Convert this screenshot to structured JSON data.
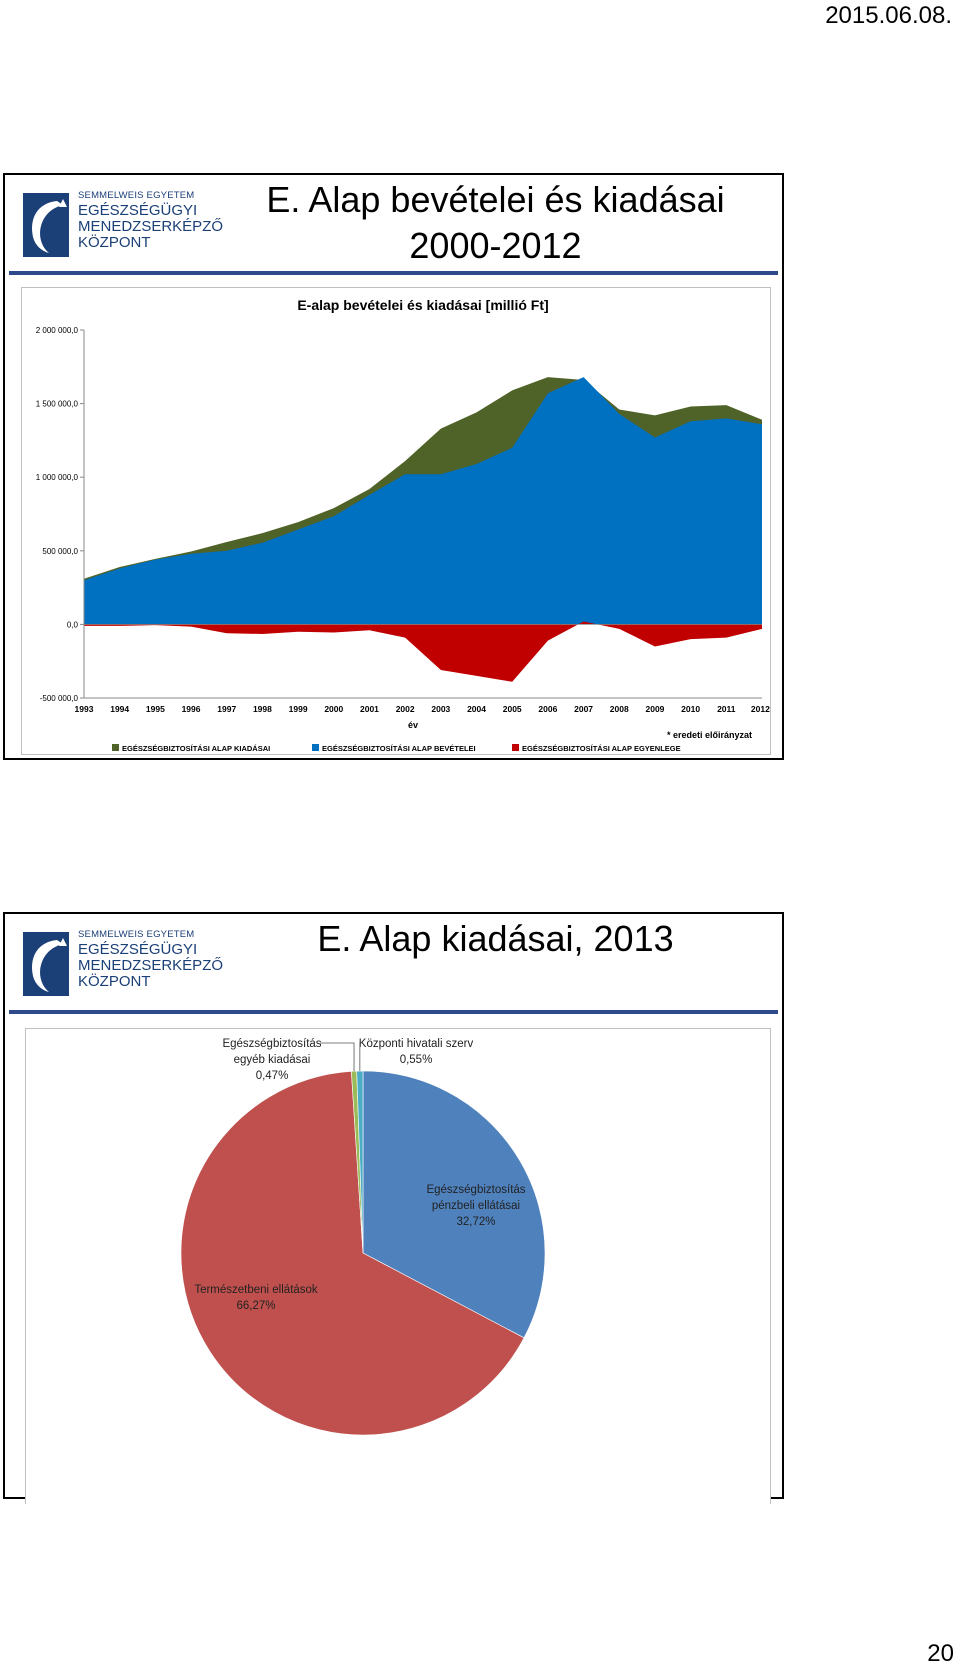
{
  "page": {
    "date": "2015.06.08.",
    "page_number": "20"
  },
  "logo": {
    "line1": "SEMMELWEIS EGYETEM",
    "line2": "EGÉSZSÉGÜGYI",
    "line3": "MENEDZSERKÉPZŐ",
    "line4": "KÖZPONT"
  },
  "slide1": {
    "title_line1": "E. Alap bevételei és kiadásai",
    "title_line2": "2000-2012"
  },
  "slide2": {
    "title": "E. Alap kiadásai, 2013"
  },
  "chart_data": [
    {
      "type": "area",
      "title": "E-alap bevételei és kiadásai [millió Ft]",
      "xlabel": "év",
      "ylabel": "",
      "ylim": [
        -500000,
        2000000
      ],
      "yticks": [
        "2 000 000,0",
        "1 500 000,0",
        "1 000 000,0",
        "500 000,0",
        "0,0",
        "-500 000,0"
      ],
      "ytick_values": [
        2000000,
        1500000,
        1000000,
        500000,
        0,
        -500000
      ],
      "categories": [
        "1993",
        "1994",
        "1995",
        "1996",
        "1997",
        "1998",
        "1999",
        "2000",
        "2001",
        "2002",
        "2003",
        "2004",
        "2005",
        "2006",
        "2007",
        "2008",
        "2009",
        "2010",
        "2011",
        "2012*"
      ],
      "note": "* eredeti előirányzat",
      "grid": false,
      "legend_position": "bottom",
      "series": [
        {
          "name": "EGÉSZSÉGBIZTOSÍTÁSI  ALAP KIADÁSAI",
          "color": "#4f6228",
          "values": [
            310000,
            390000,
            445000,
            495000,
            560000,
            620000,
            695000,
            790000,
            920000,
            1110000,
            1330000,
            1440000,
            1590000,
            1680000,
            1660000,
            1460000,
            1420000,
            1480000,
            1490000,
            1390000
          ]
        },
        {
          "name": "EGÉSZSÉGBIZTOSÍTÁSI  ALAP BEVÉTELEI",
          "color": "#0070c0",
          "values": [
            300000,
            380000,
            440000,
            480000,
            500000,
            555000,
            645000,
            735000,
            880000,
            1020000,
            1020000,
            1090000,
            1200000,
            1570000,
            1680000,
            1430000,
            1270000,
            1380000,
            1400000,
            1360000
          ]
        },
        {
          "name": "EGÉSZSÉGBIZTOSÍTÁSI  ALAP EGYENLEGE",
          "color": "#c00000",
          "values": [
            -10000,
            -10000,
            -5000,
            -15000,
            -60000,
            -65000,
            -50000,
            -55000,
            -40000,
            -90000,
            -310000,
            -350000,
            -390000,
            -110000,
            20000,
            -30000,
            -150000,
            -100000,
            -90000,
            -30000
          ]
        }
      ]
    },
    {
      "type": "pie",
      "title": "",
      "slices": [
        {
          "label": "Egészségbiztosítás pénzbeli ellátásai",
          "label_lines": [
            "Egészségbiztosítás",
            "pénzbeli ellátásai"
          ],
          "value_label": "32,72%",
          "value": 32.72,
          "color": "#4f81bd"
        },
        {
          "label": "Természetbeni ellátások",
          "label_lines": [
            "Természetbeni  ellátások"
          ],
          "value_label": "66,27%",
          "value": 66.27,
          "color": "#c0504d"
        },
        {
          "label": "Egészségbiztosítás egyéb kiadásai",
          "label_lines": [
            "Egészségbiztosítás",
            "egyéb kiadásai"
          ],
          "value_label": "0,47%",
          "value": 0.47,
          "color": "#9bbb59"
        },
        {
          "label": "Központi hivatali szerv",
          "label_lines": [
            "Központi hivatali szerv"
          ],
          "value_label": "0,55%",
          "value": 0.55,
          "color": "#4bacc6"
        }
      ]
    }
  ]
}
